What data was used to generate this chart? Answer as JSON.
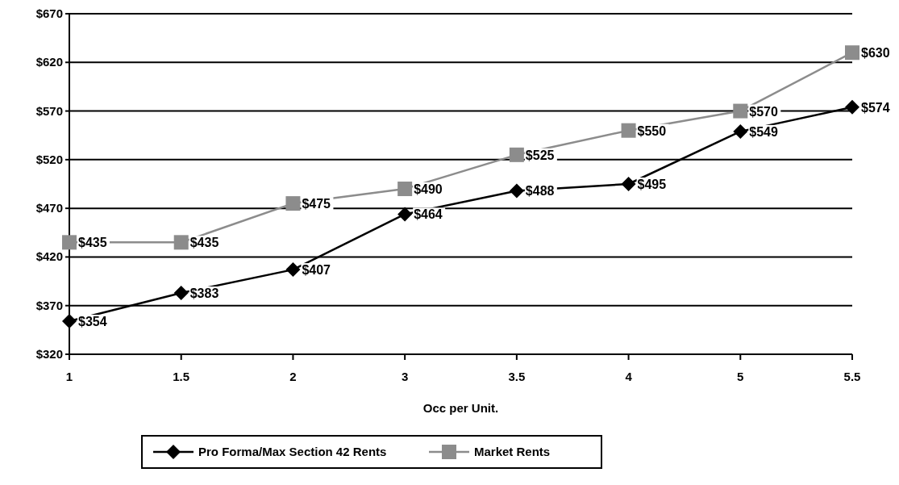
{
  "chart_data": {
    "type": "line",
    "xlabel": "Occ per Unit.",
    "categories": [
      "1",
      "1.5",
      "2",
      "3",
      "3.5",
      "4",
      "5",
      "5.5"
    ],
    "ylim": [
      320,
      670
    ],
    "yticks": [
      {
        "value": 320,
        "label": "$320"
      },
      {
        "value": 370,
        "label": "$370"
      },
      {
        "value": 420,
        "label": "$420"
      },
      {
        "value": 470,
        "label": "$470"
      },
      {
        "value": 520,
        "label": "$520"
      },
      {
        "value": 570,
        "label": "$570"
      },
      {
        "value": 620,
        "label": "$620"
      },
      {
        "value": 670,
        "label": "$670"
      }
    ],
    "grid": "y",
    "legend": "bottom",
    "series": [
      {
        "name": "Pro Forma/Max Section 42 Rents",
        "color": "#000000",
        "marker": "diamond",
        "values": [
          354,
          383,
          407,
          464,
          488,
          495,
          549,
          574
        ],
        "value_labels": [
          "$354",
          "$383",
          "$407",
          "$464",
          "$488",
          "$495",
          "$549",
          "$574"
        ]
      },
      {
        "name": "Market Rents",
        "color": "#8c8c8c",
        "marker": "square",
        "values": [
          435,
          435,
          475,
          490,
          525,
          550,
          570,
          630
        ],
        "value_labels": [
          "$435",
          "$435",
          "$475",
          "$490",
          "$525",
          "$550",
          "$570",
          "$630"
        ]
      }
    ]
  }
}
